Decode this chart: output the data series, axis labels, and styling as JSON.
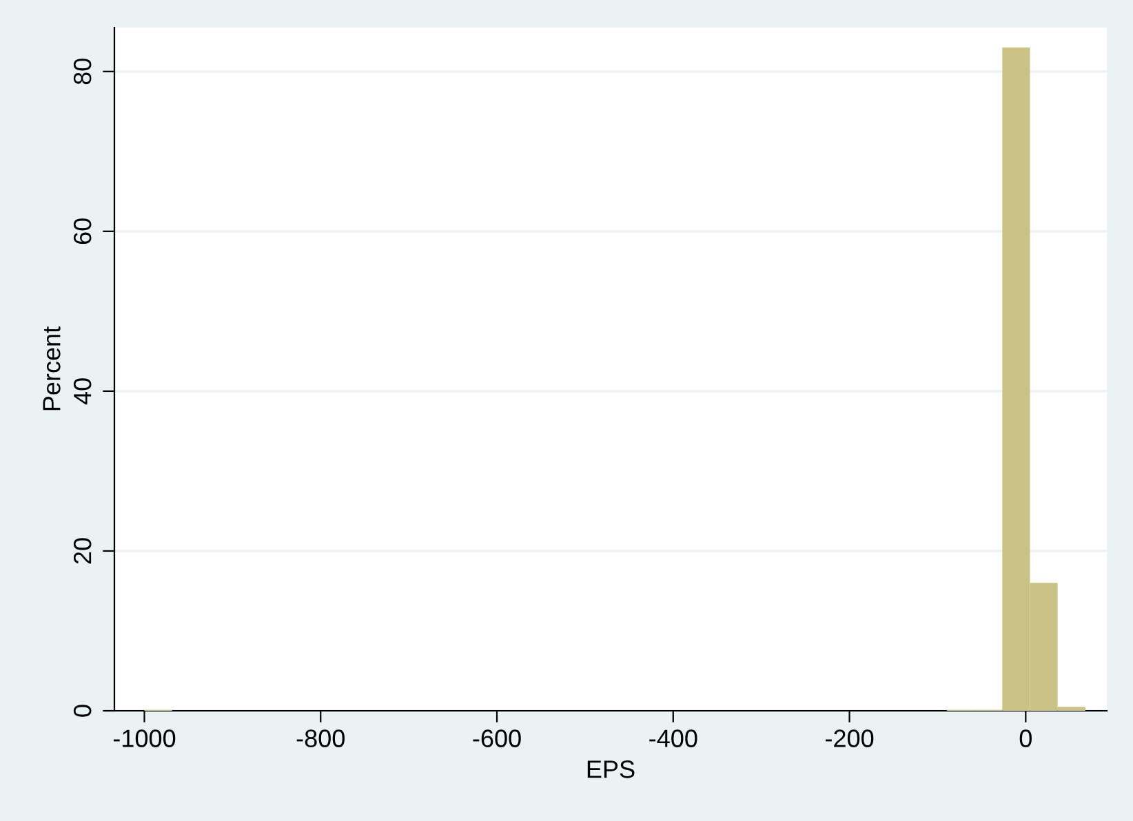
{
  "chart_data": {
    "type": "histogram",
    "xlabel": "EPS",
    "ylabel": "Percent",
    "bins": [
      -1000,
      -968.6,
      -937.2,
      -905.8,
      -874.4,
      -843,
      -811.6,
      -780.2,
      -748.8,
      -717.4,
      -686,
      -654.6,
      -623.2,
      -591.8,
      -560.4,
      -529,
      -497.6,
      -466.2,
      -434.8,
      -403.4,
      -372,
      -340.6,
      -309.2,
      -277.8,
      -246.4,
      -215,
      -183.6,
      -152.2,
      -120.8,
      -89.4,
      -58,
      -26.6,
      4.8,
      36.2,
      67.6
    ],
    "values": [
      0.1,
      0,
      0,
      0,
      0,
      0,
      0,
      0,
      0,
      0,
      0,
      0,
      0,
      0,
      0,
      0,
      0,
      0,
      0,
      0,
      0,
      0,
      0,
      0,
      0,
      0,
      0,
      0,
      0,
      0.1,
      0.1,
      83,
      16,
      0.5
    ],
    "color": "#cbc285",
    "xlim": [
      -1034,
      92
    ],
    "ylim": [
      0,
      85.5
    ],
    "xticks": [
      -1000,
      -800,
      -600,
      -400,
      -200,
      0
    ],
    "yticks": [
      0,
      20,
      40,
      60,
      80
    ],
    "grid": "y"
  }
}
